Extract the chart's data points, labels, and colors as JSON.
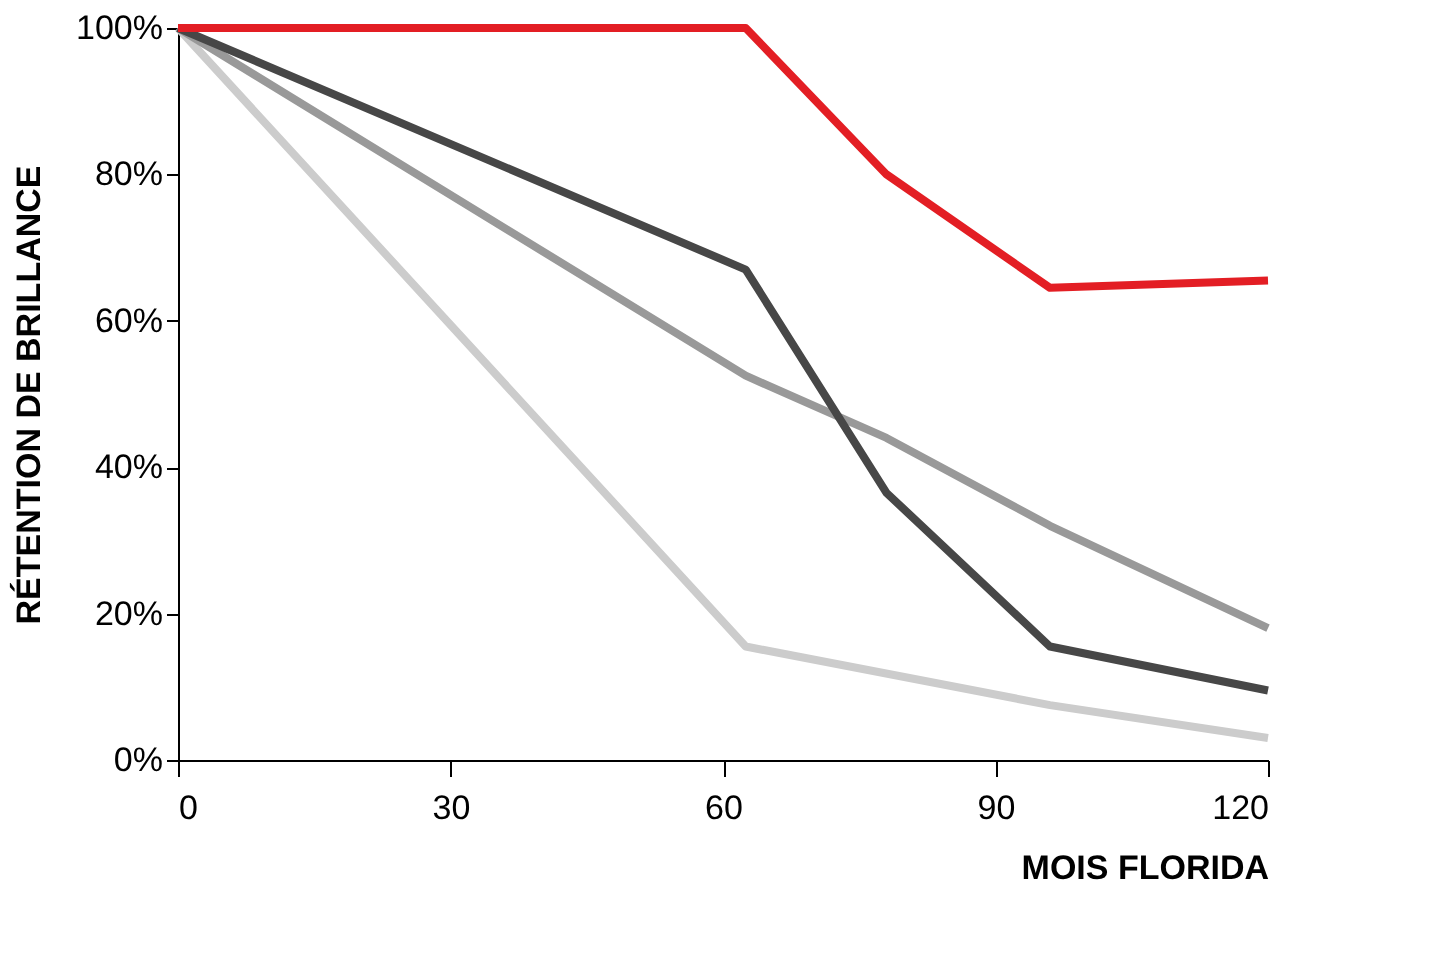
{
  "chart_data": {
    "type": "line",
    "xlabel": "MOIS FLORIDA",
    "ylabel": "RÉTENTION DE BRILLANCE",
    "series": [
      {
        "color": "#cccccc",
        "x": [
          0,
          62.5,
          96,
          120
        ],
        "values": [
          100,
          15.5,
          7.5,
          3
        ]
      },
      {
        "color": "#999999",
        "x": [
          0,
          62.5,
          78,
          96,
          120
        ],
        "values": [
          100,
          52.5,
          44,
          32,
          18
        ]
      },
      {
        "color": "#474747",
        "x": [
          0,
          62.5,
          78,
          96,
          120
        ],
        "values": [
          100,
          67,
          36.5,
          15.5,
          9.5
        ]
      },
      {
        "color": "#e31e24",
        "x": [
          0,
          62.5,
          78,
          96,
          120
        ],
        "values": [
          100,
          100,
          80,
          64.5,
          65.5
        ]
      }
    ],
    "xlim": [
      0,
      120
    ],
    "xticks": [
      0,
      30,
      60,
      90,
      120
    ],
    "ylim": [
      0,
      100
    ],
    "yticks": [
      {
        "value": 0,
        "label": "0%"
      },
      {
        "value": 20,
        "label": "20%"
      },
      {
        "value": 40,
        "label": "40%"
      },
      {
        "value": 60,
        "label": "60%"
      },
      {
        "value": 80,
        "label": "80%"
      },
      {
        "value": 100,
        "label": "100%"
      }
    ],
    "grid": false,
    "legend": false,
    "marker": "none",
    "line_style": "solid"
  }
}
